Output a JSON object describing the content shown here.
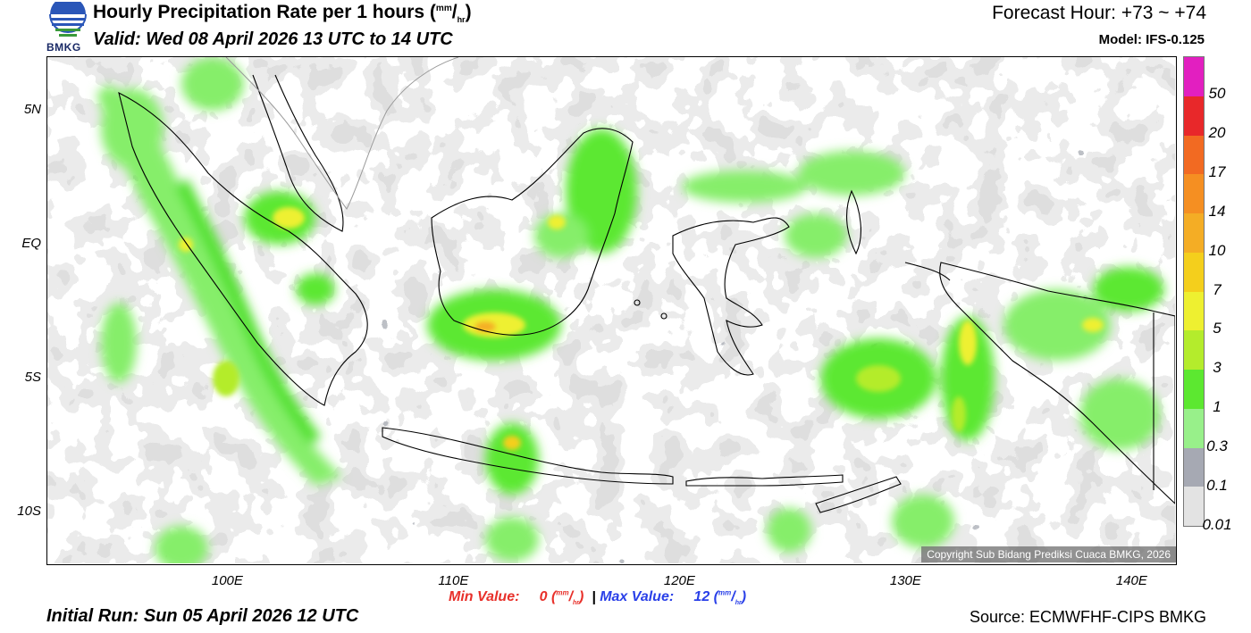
{
  "header": {
    "logo_text": "BMKG",
    "title": "Hourly Precipitation Rate per 1 hours",
    "title_unit_num": "mm",
    "title_unit_den": "hr",
    "valid": "Valid: Wed 08 April 2026 13 UTC to 14 UTC",
    "forecast_hour": "Forecast Hour: +73 ~ +74",
    "model": "Model: IFS-0.125"
  },
  "map": {
    "lon_range": [
      92,
      142
    ],
    "lat_range": [
      -12,
      7
    ],
    "copyright": "Copyright Sub Bidang Prediksi Cuaca BMKG, 2026",
    "lat_labels": [
      {
        "text": "5N",
        "lat": 5
      },
      {
        "text": "EQ",
        "lat": 0
      },
      {
        "text": "5S",
        "lat": -5
      },
      {
        "text": "10S",
        "lat": -10
      }
    ],
    "lon_labels": [
      {
        "text": "100E",
        "lon": 100
      },
      {
        "text": "110E",
        "lon": 110
      },
      {
        "text": "120E",
        "lon": 120
      },
      {
        "text": "130E",
        "lon": 130
      },
      {
        "text": "140E",
        "lon": 140
      }
    ]
  },
  "colorbar": {
    "labels": [
      "50",
      "20",
      "17",
      "14",
      "10",
      "7",
      "5",
      "3",
      "1",
      "0.3",
      "0.1",
      "0.01"
    ],
    "colors": [
      "#e21fc0",
      "#e8282a",
      "#f26a22",
      "#f58f22",
      "#f4ad25",
      "#f4cf1c",
      "#eef030",
      "#b4ec2c",
      "#5ce830",
      "#98f08a",
      "#a6a9b3",
      "#e3e3e3"
    ]
  },
  "footer": {
    "min_label": "Min Value:",
    "min_value": "0",
    "max_label": "Max Value:",
    "max_value": "12",
    "unit_num": "mm",
    "unit_den": "hr",
    "separator": "|",
    "initial_run": "Initial Run: Sun 05 April 2026 12 UTC",
    "source": "Source: ECMWFHF-CIPS BMKG"
  }
}
